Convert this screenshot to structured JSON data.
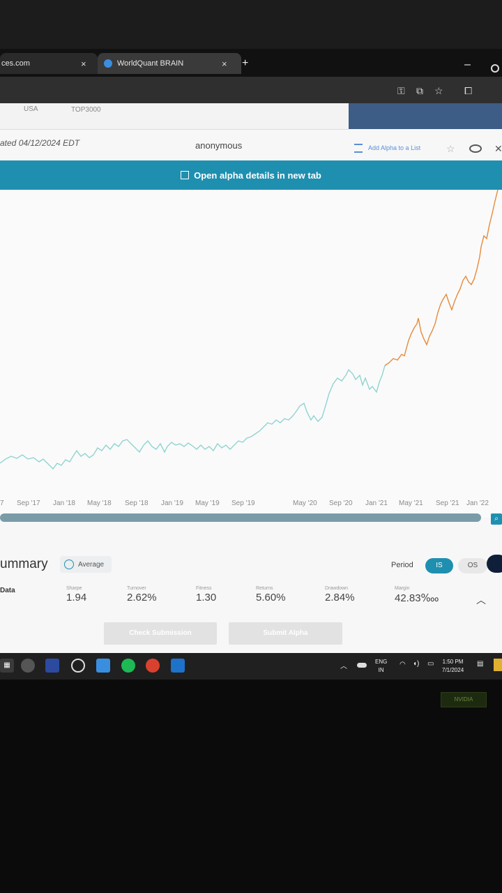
{
  "browser": {
    "tabs": [
      {
        "label": "ces.com"
      },
      {
        "label": "WorldQuant BRAIN"
      }
    ],
    "new_tab": "+",
    "window_min": "–",
    "tab_close": "×"
  },
  "page": {
    "filters": {
      "region": "USA",
      "universe": "TOP3000"
    },
    "dateline": "ated 04/12/2024 EDT",
    "author": "anonymous",
    "add_to_list": "Add Alpha to a List",
    "banner": "Open alpha details in new tab"
  },
  "chart_data": {
    "type": "line",
    "x_ticks": [
      "7",
      "Sep '17",
      "Jan '18",
      "May '18",
      "Sep '18",
      "Jan '19",
      "May '19",
      "Sep '19",
      "May '20",
      "Sep '20",
      "Jan '21",
      "May '21",
      "Sep '21",
      "Jan '22"
    ],
    "series": [
      {
        "segment": "in-sample",
        "color": "#8fd4d0"
      },
      {
        "segment": "recent",
        "color": "#e58a3a"
      }
    ]
  },
  "summary": {
    "title": "ummary",
    "average_label": "Average",
    "period_label": "Period",
    "period_options": [
      "IS",
      "OS"
    ],
    "data_label": "Data",
    "metrics": [
      {
        "label": "Sharpe",
        "value": "1.94"
      },
      {
        "label": "Turnover",
        "value": "2.62%"
      },
      {
        "label": "Fitness",
        "value": "1.30"
      },
      {
        "label": "Returns",
        "value": "5.60%"
      },
      {
        "label": "Drawdown",
        "value": "2.84%"
      },
      {
        "label": "Margin",
        "value": "42.83‱"
      }
    ],
    "check_button": "Check Submission",
    "submit_button": "Submit Alpha"
  },
  "taskbar": {
    "lang": "ENG",
    "lang_sub": "IN",
    "time": "1:50 PM",
    "date": "7/1/2024"
  },
  "bezel": {
    "brand": "NVIDIA"
  }
}
